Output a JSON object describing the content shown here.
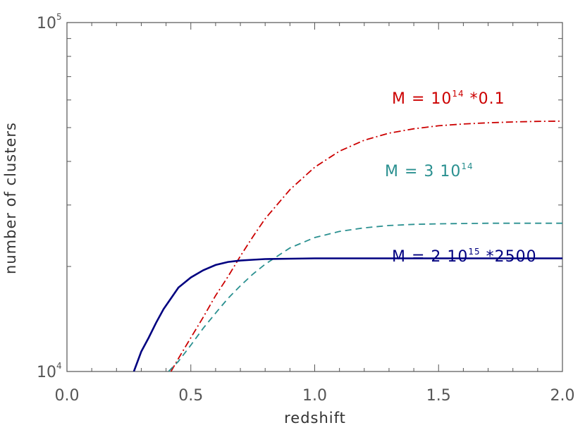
{
  "chart_data": {
    "type": "line",
    "xlabel": "redshift",
    "ylabel": "number of clusters",
    "x_scale": "linear",
    "y_scale": "log",
    "xlim": [
      0.0,
      2.0
    ],
    "ylim": [
      10000,
      100000
    ],
    "x_ticks": [
      "0.0",
      "0.5",
      "1.0",
      "1.5",
      "2.0"
    ],
    "y_ticks": [
      {
        "base": "10",
        "exp": "4"
      },
      {
        "base": "10",
        "exp": "5"
      }
    ],
    "grid": false,
    "series": [
      {
        "name_parts": [
          "M = 10",
          "14",
          " *0.1"
        ],
        "color": "#cc0000",
        "line_style": "dash-dot",
        "x": [
          0.42,
          0.45,
          0.5,
          0.55,
          0.6,
          0.65,
          0.7,
          0.75,
          0.8,
          0.9,
          1.0,
          1.1,
          1.2,
          1.3,
          1.4,
          1.5,
          1.6,
          1.7,
          1.8,
          1.9,
          2.0
        ],
        "y": [
          10000,
          10900,
          12500,
          14300,
          16500,
          18700,
          21400,
          24300,
          27400,
          33200,
          38500,
          42800,
          46000,
          48200,
          49600,
          50600,
          51200,
          51600,
          51900,
          52100,
          52200
        ]
      },
      {
        "name_parts": [
          "M = 3 10",
          "14",
          ""
        ],
        "color": "#2a9090",
        "line_style": "dashed",
        "x": [
          0.41,
          0.45,
          0.5,
          0.55,
          0.6,
          0.65,
          0.7,
          0.75,
          0.8,
          0.9,
          1.0,
          1.1,
          1.2,
          1.3,
          1.4,
          1.5,
          1.6,
          1.7,
          1.8,
          1.9,
          2.0
        ],
        "y": [
          10000,
          10700,
          11900,
          13300,
          14700,
          16200,
          17600,
          19000,
          20300,
          22600,
          24200,
          25200,
          25800,
          26200,
          26400,
          26500,
          26550,
          26600,
          26600,
          26600,
          26600
        ]
      },
      {
        "name_parts": [
          "M = 2 10",
          "15",
          " *2500"
        ],
        "color": "#000080",
        "line_style": "solid",
        "x": [
          0.27,
          0.3,
          0.33,
          0.36,
          0.39,
          0.42,
          0.45,
          0.5,
          0.55,
          0.6,
          0.65,
          0.7,
          0.75,
          0.8,
          0.9,
          1.0,
          1.2,
          1.4,
          1.6,
          1.8,
          2.0
        ],
        "y": [
          10000,
          11400,
          12500,
          13800,
          15100,
          16200,
          17400,
          18600,
          19500,
          20200,
          20600,
          20800,
          20900,
          21000,
          21050,
          21100,
          21100,
          21100,
          21100,
          21100,
          21100
        ]
      }
    ]
  }
}
